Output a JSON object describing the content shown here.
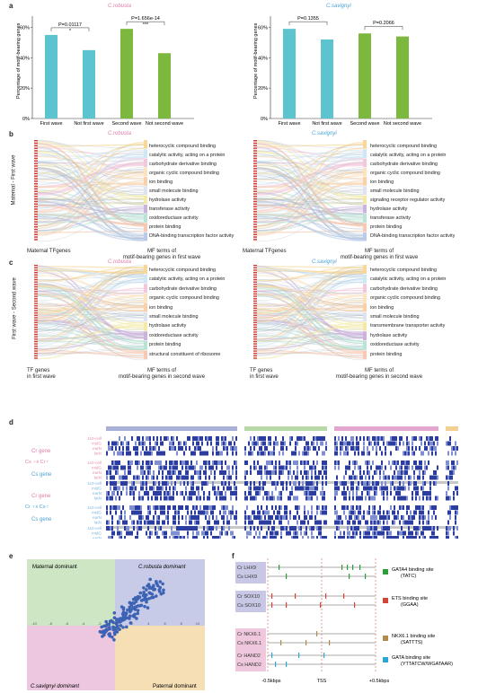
{
  "panels": {
    "a": "a",
    "b": "b",
    "c": "c",
    "d": "d",
    "e": "e",
    "f": "f"
  },
  "panel_a": {
    "left_title": "C.robusta",
    "right_title": "C.savignyi",
    "ylabel": "Percentage of motif-bearing genes",
    "yticks": [
      "0%",
      "20%",
      "40%",
      "60%"
    ],
    "left_pvals": [
      "P=0.01117",
      "*",
      "P=1.656e-14",
      "***"
    ],
    "right_pvals": [
      "P=0.1355",
      "P=0.2066"
    ]
  },
  "chart_data": [
    {
      "type": "bar",
      "title": "C.robusta",
      "categories": [
        "First wave",
        "Not first wave",
        "Second wave",
        "Not second wave"
      ],
      "values": [
        55,
        45,
        59,
        43
      ],
      "ylim": [
        0,
        65
      ],
      "ylabel": "Percentage of motif-bearing genes",
      "colors": [
        "#5cc4cf",
        "#5cc4cf",
        "#7cb83e",
        "#7cb83e"
      ]
    },
    {
      "type": "bar",
      "title": "C.savignyi",
      "categories": [
        "First wave",
        "Not first wave",
        "Second wave",
        "Not second wave"
      ],
      "values": [
        59,
        52,
        56,
        54
      ],
      "ylim": [
        0,
        65
      ],
      "ylabel": "Percentage of motif-bearing genes",
      "colors": [
        "#5cc4cf",
        "#5cc4cf",
        "#7cb83e",
        "#7cb83e"
      ]
    }
  ],
  "panel_b": {
    "side": "Maternal - First wave",
    "left_title": "C.robusta",
    "right_title": "C.savignyi",
    "left_terms": [
      "heterocyclic compound binding",
      "catalytic activity, acting on a protein",
      "carbohydrate derivative binding",
      "organic cyclic compound binding",
      "ion binding",
      "small molecule binding",
      "hydrolase activity",
      "transferase activity",
      "oxidoreductase activity",
      "protein binding",
      "DNA-binding transcription factor activity"
    ],
    "right_terms": [
      "heterocyclic compound binding",
      "catalytic activity, acting on a protein",
      "carbohydrate derivative binding",
      "organic cyclic compound binding",
      "ion binding",
      "small molecule binding",
      "signaling receptor regulator activity",
      "hydrolase activity",
      "transferase activity",
      "protein binding",
      "DNA-binding transcription factor activity"
    ],
    "left_axis": "Maternal TFgenes",
    "right_axis_1": "MF terms of",
    "right_axis_2": "motif-bearing genes in first wave"
  },
  "panel_c": {
    "side": "First wave - Second wave",
    "left_title": "C.robusta",
    "right_title": "C.savignyi",
    "left_terms": [
      "heterocyclic compound binding",
      "catalytic activity, acting on a protein",
      "carbohydrate derivative binding",
      "organic cyclic compound binding",
      "ion binding",
      "small molecule binding",
      "hydrolase activity",
      "oxidoreductase activity",
      "protein binding",
      "structural constituent of ribosome"
    ],
    "right_terms": [
      "heterocyclic compound binding",
      "catalytic activity, acting on a protein",
      "carbohydrate derivative binding",
      "organic cyclic compound binding",
      "ion binding",
      "small molecule binding",
      "transmembrane transporter activity",
      "hydrolase activity",
      "oxidoreductase activity",
      "protein binding"
    ],
    "left_axis_1": "TF genes",
    "left_axis_2": "in first wave",
    "right_axis_1": "MF terms of",
    "right_axis_2": "motif-bearing genes in second wave"
  },
  "panel_d": {
    "cr_gene": "Cr gene",
    "cs_gene": "Cs gene",
    "cross1": "Cs ♀x Cr♂",
    "cross2": "Cr ♀x Cs♂",
    "rows": [
      "110-cell",
      "midG",
      "earN",
      "latN"
    ]
  },
  "panel_e": {
    "q_tl": "Maternal dominant",
    "q_tr": "C.robusta dominant",
    "q_bl": "C.savignyi dominant",
    "q_br": "Paternal dominant",
    "xticks": [
      "-10",
      "-8",
      "-6",
      "-4",
      "-2",
      "0",
      "2",
      "4",
      "6",
      "8",
      "10"
    ]
  },
  "panel_f": {
    "genes": [
      [
        "Cr LHX9",
        "Cs LHX9"
      ],
      [
        "Cr SOX10",
        "Cs SOX10"
      ],
      [
        "Cr NKX6.1",
        "Cs NKX6.1"
      ],
      [
        "Cr HAND2",
        "Cs HAND2"
      ]
    ],
    "sites": [
      {
        "name": "GATA4 binding site",
        "motif": "(TATC)",
        "color": "#2e9b3c"
      },
      {
        "name": "ETS binding site",
        "motif": "(GGAA)",
        "color": "#d0443a"
      },
      {
        "name": "NKX6.1 binding site",
        "motif": "(SATTTS)",
        "color": "#b38a4d"
      },
      {
        "name": "GATA binding site",
        "motif": "(YTTATCW/WGATAAR)",
        "color": "#2aa6d4"
      }
    ],
    "axis": [
      "-0.5kbps",
      "TSS",
      "+0.5kbps"
    ]
  }
}
